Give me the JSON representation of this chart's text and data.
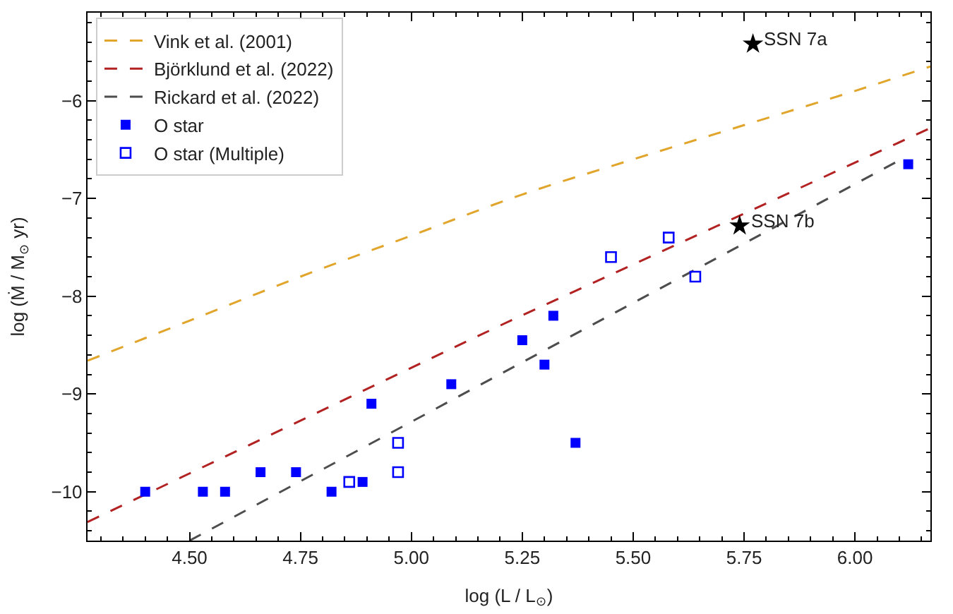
{
  "chart_data": {
    "type": "scatter",
    "xlabel": "log (L / L$_{⊙}$)",
    "ylabel": "log (Ṁ / M$_{⊙}$ yr)",
    "xlim": [
      4.27,
      6.17
    ],
    "ylim": [
      -10.5,
      -5.1
    ],
    "xticks": [
      {
        "value": 4.5,
        "label": "4.50"
      },
      4.75,
      {
        "value": 5.0,
        "label": "5.00"
      },
      5.25,
      {
        "value": 5.5,
        "label": "5.50"
      },
      5.75,
      {
        "value": 6.0,
        "label": "6.00"
      }
    ],
    "yticks": [
      -10,
      -9,
      -8,
      -7,
      -6
    ],
    "legend": "top left",
    "series": [
      {
        "name": "Vink et al. (2001)",
        "type": "line",
        "line_style": "dashed",
        "marker": "none",
        "color": "#e0a52a",
        "x": [
          4.27,
          4.5,
          4.75,
          5.0,
          5.25,
          5.5,
          5.75,
          6.0,
          6.17
        ],
        "values": [
          -8.66,
          -8.25,
          -7.8,
          -7.38,
          -6.96,
          -6.6,
          -6.25,
          -5.9,
          -5.65
        ]
      },
      {
        "name": "Björklund et al. (2022)",
        "type": "line",
        "line_style": "dashed",
        "marker": "none",
        "color": "#b22222",
        "x": [
          4.27,
          5.2,
          6.17
        ],
        "values": [
          -10.31,
          -8.3,
          -6.28
        ]
      },
      {
        "name": "Rickard et al. (2022)",
        "type": "line",
        "line_style": "dashed",
        "marker": "none",
        "color": "#4d4d4d",
        "x": [
          4.5,
          6.1
        ],
        "values": [
          -10.5,
          -6.61
        ]
      },
      {
        "name": "O star",
        "marker": "square",
        "color": "#0000ff",
        "x": [
          4.4,
          4.53,
          4.58,
          4.66,
          4.74,
          4.82,
          4.89,
          4.91,
          5.09,
          5.25,
          5.3,
          5.32,
          5.37,
          6.12
        ],
        "values": [
          -10.0,
          -10.0,
          -10.0,
          -9.8,
          -9.8,
          -10.0,
          -9.9,
          -9.1,
          -8.9,
          -8.45,
          -8.7,
          -8.2,
          -9.5,
          -6.65
        ]
      },
      {
        "name": "O star (Multiple)",
        "marker": "square-open",
        "color": "#0000ff",
        "x": [
          4.86,
          4.97,
          4.97,
          5.45,
          5.58,
          5.64
        ],
        "values": [
          -9.9,
          -9.5,
          -9.8,
          -7.6,
          -7.4,
          -7.8
        ]
      },
      {
        "marker": "star",
        "color": "#000000",
        "x": [
          5.77,
          5.74
        ],
        "values": [
          -5.42,
          -7.28
        ]
      }
    ],
    "annotations": [
      {
        "text": "SSN 7a",
        "x": 5.77,
        "y": -5.42
      },
      {
        "text": "SSN 7b",
        "x": 5.74,
        "y": -7.28
      }
    ]
  }
}
